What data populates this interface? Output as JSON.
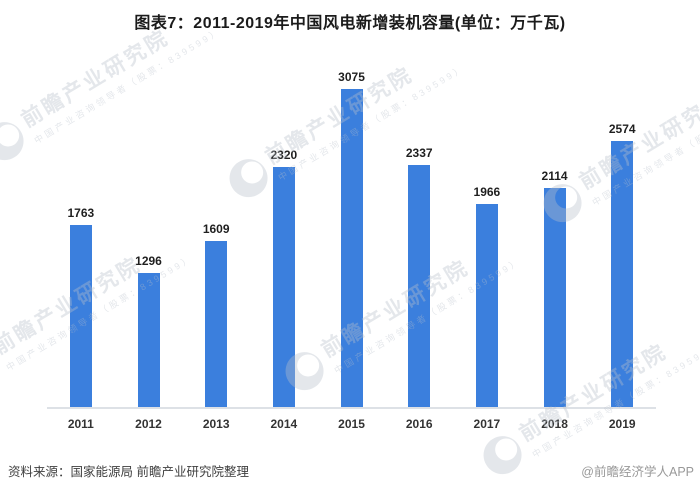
{
  "title": "图表7：2011-2019年中国风电新增装机容量(单位：万千瓦)",
  "footer": {
    "source": "资料来源：国家能源局 前瞻产业研究院整理",
    "credit": "@前瞻经济学人APP"
  },
  "watermark": {
    "text": "前瞻产业研究院",
    "subtext": "中国产业咨询领导者（股票：839599）"
  },
  "colors": {
    "bar": "#3b7fdd",
    "axis_line": "#dde1e6",
    "title_text": "#1b1b1b",
    "value_label_text": "#1f1f1f",
    "tick_label_text": "#333333",
    "footer_source_text": "#404040",
    "footer_credit_text": "#999999",
    "watermark": "rgba(183,192,203,0.38)"
  },
  "chart_data": {
    "type": "bar",
    "title": "图表7：2011-2019年中国风电新增装机容量(单位：万千瓦)",
    "unit": "万千瓦",
    "categories": [
      "2011",
      "2012",
      "2013",
      "2014",
      "2015",
      "2016",
      "2017",
      "2018",
      "2019"
    ],
    "values": [
      1763,
      1296,
      1609,
      2320,
      3075,
      2337,
      1966,
      2114,
      2574
    ],
    "xlabel": "",
    "ylabel": "",
    "ylim": [
      0,
      3350
    ],
    "grid": false,
    "legend": false,
    "data_labels": true,
    "bar_color": "#3b7fdd"
  }
}
